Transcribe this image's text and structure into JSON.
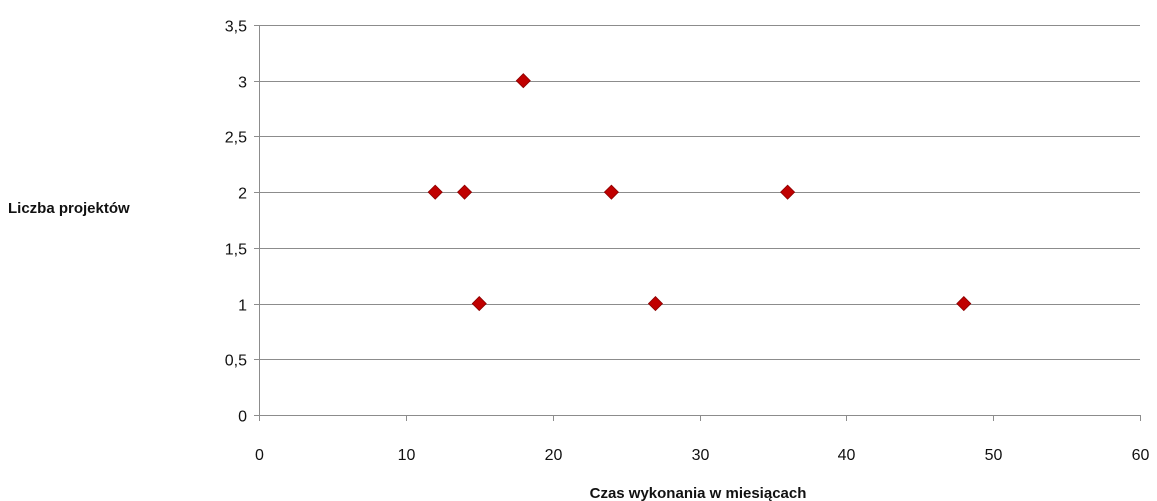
{
  "chart_data": {
    "type": "scatter",
    "title": "",
    "xlabel": "Czas wykonania w miesiącach",
    "ylabel": "Liczba projektów",
    "xlim": [
      0,
      60
    ],
    "ylim": [
      0,
      3.5
    ],
    "x_ticks": [
      0,
      10,
      20,
      30,
      40,
      50,
      60
    ],
    "x_tick_labels": [
      "0",
      "10",
      "20",
      "30",
      "40",
      "50",
      "60"
    ],
    "y_ticks": [
      0,
      0.5,
      1,
      1.5,
      2,
      2.5,
      3,
      3.5
    ],
    "y_tick_labels": [
      "0",
      "0,5",
      "1",
      "1,5",
      "2",
      "2,5",
      "3",
      "3,5"
    ],
    "grid": "horizontal",
    "legend": "none",
    "marker": "diamond",
    "marker_color": "#C00000",
    "series": [
      {
        "points": [
          {
            "x": 12,
            "y": 2
          },
          {
            "x": 14,
            "y": 2
          },
          {
            "x": 15,
            "y": 1
          },
          {
            "x": 18,
            "y": 3
          },
          {
            "x": 24,
            "y": 2
          },
          {
            "x": 27,
            "y": 1
          },
          {
            "x": 36,
            "y": 2
          },
          {
            "x": 48,
            "y": 1
          }
        ]
      }
    ]
  }
}
